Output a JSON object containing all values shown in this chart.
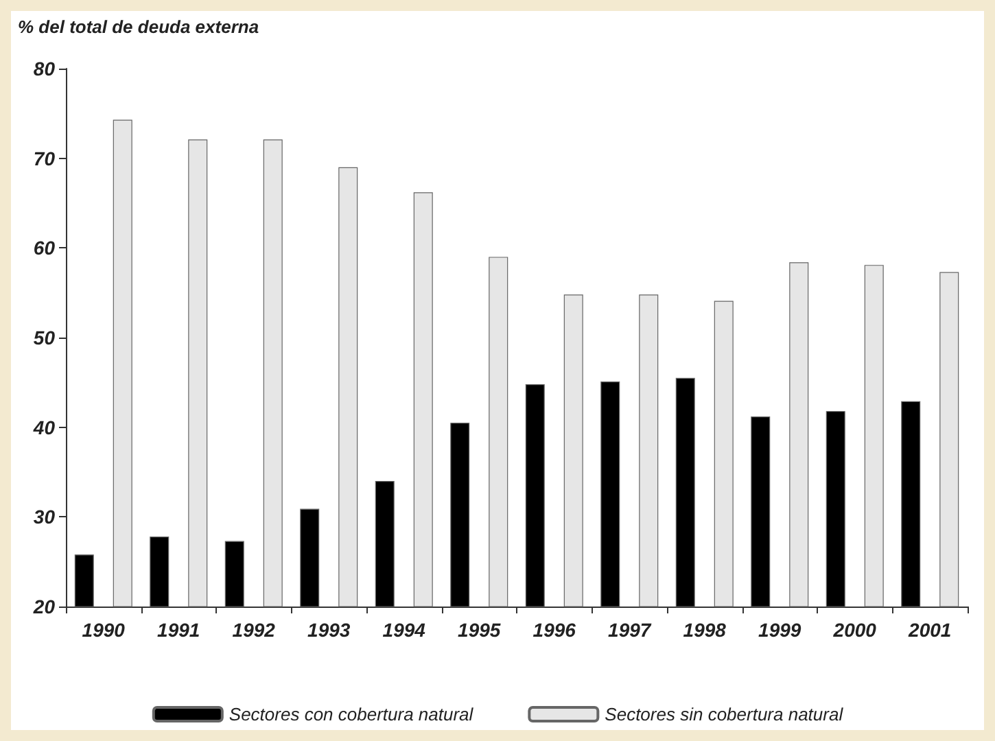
{
  "chart_data": {
    "type": "bar",
    "ylabel": "% del total de deuda externa",
    "categories": [
      "1990",
      "1991",
      "1992",
      "1993",
      "1994",
      "1995",
      "1996",
      "1997",
      "1998",
      "1999",
      "2000",
      "2001"
    ],
    "series": [
      {
        "name": "Sectores con cobertura natural",
        "color": "#000000",
        "values": [
          25.8,
          27.8,
          27.3,
          30.9,
          34.0,
          40.5,
          44.8,
          45.1,
          45.5,
          41.2,
          41.8,
          42.9
        ]
      },
      {
        "name": "Sectores sin cobertura natural",
        "color": "#e6e6e6",
        "values": [
          74.3,
          72.1,
          72.1,
          69.0,
          66.2,
          59.0,
          54.8,
          54.8,
          54.1,
          58.4,
          58.1,
          57.3
        ]
      }
    ],
    "ylim": [
      20,
      80
    ],
    "yticks": [
      20,
      30,
      40,
      50,
      60,
      70,
      80
    ],
    "grid": false,
    "legend": "bottom"
  }
}
